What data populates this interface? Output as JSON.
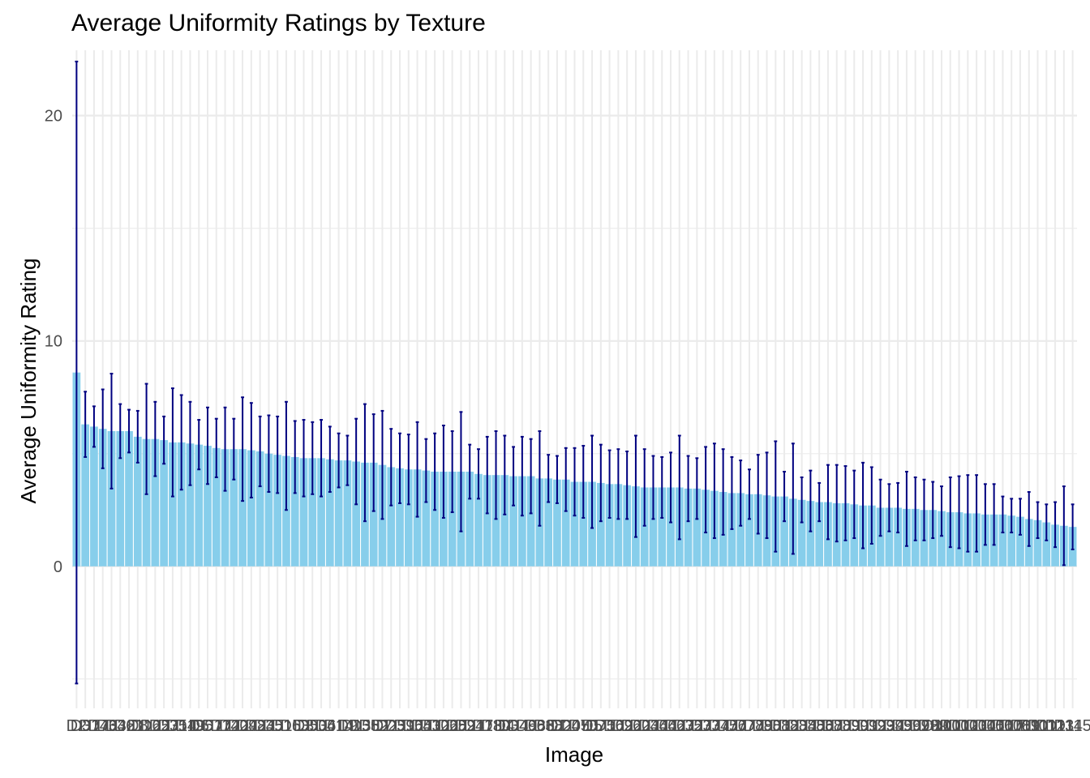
{
  "chart_data": {
    "type": "bar",
    "title": "Average Uniformity Ratings by Texture",
    "xlabel": "Image",
    "ylabel": "Average Uniformity Rating",
    "ylim": [
      -6.3,
      22.9
    ],
    "yticks": [
      0,
      10,
      20
    ],
    "grid": true,
    "colors": {
      "bar": "#87ceeb",
      "errorbar": "#000080",
      "grid": "#ebebeb",
      "background": "#ffffff"
    },
    "categories": [
      "D2",
      "D37",
      "D17",
      "D46",
      "D33",
      "D42",
      "D61",
      "D8",
      "D12",
      "D65",
      "D27",
      "D31",
      "D54",
      "D19",
      "D6",
      "D57",
      "D11",
      "D72",
      "D40",
      "D29",
      "D48",
      "D24",
      "D35",
      "D51",
      "D15",
      "D63",
      "D3",
      "D50",
      "D36",
      "D41",
      "D14",
      "D9",
      "D13",
      "D58",
      "D52",
      "D7",
      "D25",
      "D39",
      "D16",
      "D55",
      "D43",
      "D10",
      "D26",
      "D28",
      "D59",
      "D21",
      "D47",
      "D18",
      "D30",
      "D4",
      "D34",
      "D49",
      "D68",
      "D66",
      "D38",
      "D1",
      "D20",
      "D45",
      "D70",
      "D5",
      "D71",
      "D56",
      "D69",
      "D22",
      "D60",
      "D23",
      "D44",
      "D64",
      "D62",
      "D67",
      "D32",
      "D53",
      "D73",
      "D74",
      "D75",
      "D76",
      "D77",
      "D78",
      "D79",
      "D80",
      "D81",
      "D82",
      "D83",
      "D84",
      "D85",
      "D86",
      "D87",
      "D88",
      "D89",
      "D90",
      "D91",
      "D92",
      "D93",
      "D94",
      "D95",
      "D96",
      "D97",
      "D98",
      "D99",
      "D100",
      "D101",
      "D102",
      "D103",
      "D104",
      "D105",
      "D106",
      "D107",
      "D108",
      "D109",
      "D110",
      "D111",
      "D112",
      "D113",
      "D114",
      "D115"
    ],
    "values": [
      8.6,
      6.3,
      6.2,
      6.1,
      6.0,
      6.0,
      6.0,
      5.75,
      5.65,
      5.65,
      5.6,
      5.5,
      5.5,
      5.45,
      5.4,
      5.35,
      5.25,
      5.2,
      5.2,
      5.2,
      5.15,
      5.1,
      5.0,
      4.95,
      4.9,
      4.85,
      4.8,
      4.8,
      4.8,
      4.75,
      4.7,
      4.7,
      4.65,
      4.6,
      4.6,
      4.5,
      4.4,
      4.35,
      4.3,
      4.3,
      4.25,
      4.2,
      4.2,
      4.2,
      4.2,
      4.2,
      4.1,
      4.05,
      4.05,
      4.05,
      4.0,
      4.0,
      4.0,
      3.9,
      3.9,
      3.85,
      3.85,
      3.75,
      3.75,
      3.75,
      3.7,
      3.65,
      3.65,
      3.6,
      3.55,
      3.5,
      3.5,
      3.5,
      3.5,
      3.5,
      3.45,
      3.45,
      3.4,
      3.35,
      3.3,
      3.25,
      3.25,
      3.2,
      3.2,
      3.15,
      3.1,
      3.1,
      3.0,
      2.95,
      2.9,
      2.85,
      2.85,
      2.8,
      2.8,
      2.75,
      2.7,
      2.7,
      2.6,
      2.6,
      2.6,
      2.55,
      2.55,
      2.5,
      2.5,
      2.45,
      2.4,
      2.4,
      2.35,
      2.35,
      2.3,
      2.3,
      2.3,
      2.25,
      2.2,
      2.1,
      2.05,
      1.95,
      1.85,
      1.8,
      1.75
    ],
    "error": [
      13.8,
      1.45,
      0.9,
      1.75,
      2.55,
      1.2,
      0.95,
      1.15,
      2.45,
      1.65,
      1.05,
      2.4,
      2.1,
      1.85,
      1.1,
      1.7,
      1.3,
      1.85,
      1.35,
      2.3,
      2.1,
      1.55,
      1.7,
      1.7,
      2.4,
      1.6,
      1.7,
      1.6,
      1.7,
      1.45,
      1.2,
      1.1,
      1.9,
      2.6,
      2.15,
      2.4,
      1.7,
      1.55,
      1.55,
      2.1,
      1.4,
      1.7,
      2.05,
      1.8,
      2.65,
      1.2,
      1.1,
      1.7,
      1.95,
      1.75,
      1.3,
      1.75,
      1.65,
      2.1,
      1.05,
      1.05,
      1.4,
      1.5,
      1.6,
      2.05,
      1.7,
      1.5,
      1.55,
      1.5,
      2.25,
      1.7,
      1.4,
      1.35,
      1.55,
      2.3,
      1.45,
      1.35,
      1.9,
      2.1,
      1.9,
      1.6,
      1.45,
      1.1,
      1.75,
      1.9,
      2.45,
      1.1,
      2.45,
      1.0,
      1.35,
      0.85,
      1.65,
      1.7,
      1.65,
      1.5,
      1.9,
      1.7,
      1.25,
      1.05,
      1.1,
      1.65,
      1.4,
      1.35,
      1.25,
      1.1,
      1.55,
      1.6,
      1.7,
      1.7,
      1.35,
      1.35,
      0.8,
      0.75,
      0.8,
      1.2,
      0.8,
      0.8,
      1.0,
      1.75,
      1.0
    ]
  }
}
